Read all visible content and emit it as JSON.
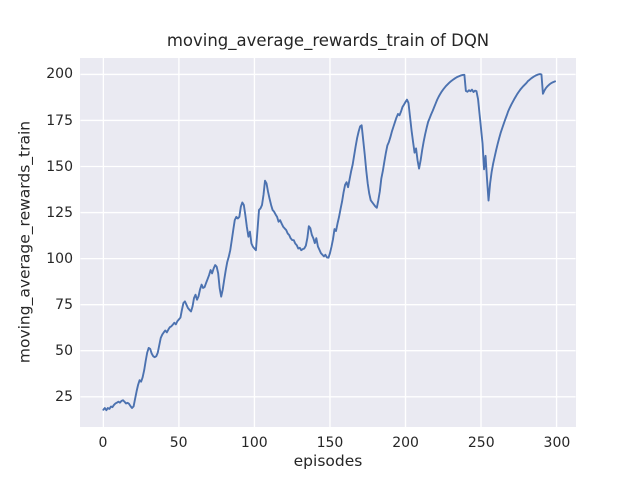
{
  "colors": {
    "figure_bg": "#ffffff",
    "axes_bg": "#eaeaf2",
    "grid": "#ffffff",
    "text": "#262626",
    "line": "#4c72b0"
  },
  "chart_data": {
    "type": "line",
    "title": "moving_average_rewards_train of DQN",
    "xlabel": "episodes",
    "ylabel": "moving_average_rewards_train",
    "x_ticks": [
      0,
      50,
      100,
      150,
      200,
      250,
      300
    ],
    "y_ticks": [
      25,
      50,
      75,
      100,
      125,
      150,
      175,
      200
    ],
    "xlim": [
      -15.2,
      312.6
    ],
    "ylim": [
      8.6,
      208.9
    ],
    "grid": true,
    "legend": false,
    "style": "seaborn-darkgrid",
    "series": [
      {
        "name": "moving_average_rewards_train",
        "color": "#4c72b0",
        "x0": 0,
        "dx": 1,
        "values": [
          18,
          18.9,
          17.7,
          18.9,
          18.4,
          19.7,
          19.4,
          20.6,
          21.4,
          21.8,
          22.3,
          21.8,
          22.8,
          23.1,
          22.3,
          21.4,
          21.7,
          21.2,
          19.9,
          18.9,
          19.8,
          24,
          28,
          31.5,
          34,
          33.2,
          35.5,
          39.5,
          44.5,
          49,
          51.5,
          51,
          48.5,
          47,
          46.5,
          47,
          49,
          53,
          57,
          58.8,
          60,
          61,
          60,
          61.5,
          62.8,
          63.3,
          64.2,
          65.2,
          64.3,
          66,
          67,
          68,
          72.2,
          75.9,
          76.8,
          75,
          73.2,
          72.2,
          71.3,
          74,
          78.6,
          80.4,
          77.7,
          79.5,
          83.2,
          85.9,
          84.1,
          84.6,
          86.8,
          88.9,
          91.1,
          93.8,
          92,
          94.7,
          96.5,
          95.6,
          92,
          83.9,
          79.4,
          83,
          88.4,
          93.8,
          98.2,
          101,
          104.6,
          110,
          115.5,
          120.9,
          122.7,
          121.8,
          122.7,
          128.2,
          130.5,
          129.1,
          123.6,
          117.3,
          111.9,
          114.6,
          108.2,
          106.4,
          105.5,
          104.6,
          115,
          126.4,
          127.3,
          129.1,
          134.6,
          142.3,
          140.9,
          136.4,
          132.7,
          129.1,
          126.4,
          125.5,
          124,
          122.7,
          120,
          120.9,
          119.1,
          117.3,
          116.4,
          115.5,
          113.7,
          112.8,
          111,
          110.1,
          110,
          108.2,
          107.3,
          105.5,
          105.9,
          104.6,
          105.2,
          105.5,
          107,
          111.1,
          117.6,
          116.5,
          112.9,
          111.1,
          108.4,
          111.1,
          106.6,
          104.8,
          103,
          102.1,
          101.2,
          102.1,
          100.6,
          100.5,
          103,
          106.5,
          110.5,
          116,
          115,
          119,
          122.5,
          127,
          131,
          136,
          140,
          141.5,
          138.8,
          143,
          147.5,
          151,
          156,
          161,
          165.5,
          169,
          171.8,
          172.4,
          164.2,
          156.5,
          147.9,
          140.7,
          135.3,
          131.7,
          130.6,
          129.5,
          128.3,
          127.6,
          131.7,
          136.5,
          143.5,
          147.5,
          152.5,
          157.5,
          161.5,
          163.3,
          166,
          169,
          171.5,
          174,
          176.5,
          178.5,
          177.8,
          179.8,
          182.3,
          183.6,
          185,
          186.3,
          184.5,
          176.8,
          169.5,
          163.4,
          157.5,
          159.8,
          153.4,
          148.9,
          153.4,
          158.8,
          163.5,
          167.5,
          171,
          174.2,
          176.2,
          178.3,
          180.3,
          182.3,
          184.3,
          186.3,
          187.9,
          189.4,
          190.7,
          191.9,
          192.9,
          193.9,
          194.7,
          195.5,
          196.2,
          196.8,
          197.4,
          198,
          198.5,
          198.9,
          199.2,
          199.5,
          199.7,
          199.8,
          191,
          190.6,
          191.4,
          190.9,
          191.7,
          190.4,
          191.2,
          190.9,
          186.5,
          178.5,
          170.5,
          162.5,
          148.5,
          155.8,
          143,
          131.5,
          141,
          147,
          151.5,
          155.2,
          158.8,
          162.2,
          165.3,
          168.2,
          170.8,
          173.2,
          175.5,
          177.7,
          180,
          181.8,
          183.5,
          185.1,
          186.6,
          188,
          189.4,
          190.6,
          191.7,
          192.7,
          193.6,
          194.5,
          195.3,
          196.3,
          197,
          197.7,
          198.3,
          198.8,
          199.3,
          199.7,
          200,
          200.2,
          199.9,
          189.5,
          191.3,
          192.6,
          193.6,
          194.4,
          195,
          195.5,
          195.9,
          196.2
        ]
      }
    ]
  }
}
